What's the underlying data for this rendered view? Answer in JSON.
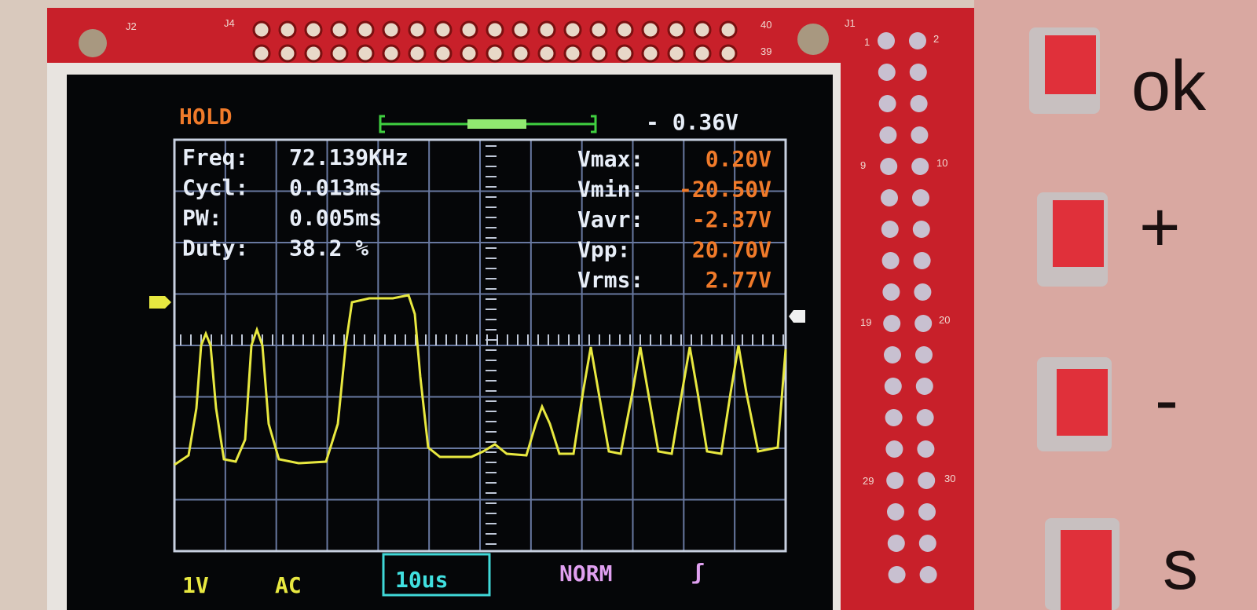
{
  "header": {
    "mode": "HOLD",
    "trigger_level": "- 0.36V"
  },
  "left_measurements": [
    {
      "label": "Freq:",
      "value": "72.139KHz"
    },
    {
      "label": "Cycl:",
      "value": "0.013ms"
    },
    {
      "label": "PW:",
      "value": "0.005ms"
    },
    {
      "label": "Duty:",
      "value": "38.2 %"
    }
  ],
  "right_measurements": [
    {
      "label": "Vmax:",
      "value": "0.20V"
    },
    {
      "label": "Vmin:",
      "value": "-20.50V"
    },
    {
      "label": "Vavr:",
      "value": "-2.37V"
    },
    {
      "label": "Vpp:",
      "value": "20.70V"
    },
    {
      "label": "Vrms:",
      "value": "2.77V"
    }
  ],
  "footer": {
    "volts_per_div": "1V",
    "coupling": "AC",
    "time_per_div": "10us",
    "trigger_mode": "NORM",
    "trigger_edge": "ʃ"
  },
  "board_labels": {
    "j2": "J2",
    "j4": "J4",
    "j1": "J1",
    "pin1": "1",
    "pin2": "2",
    "pin9": "9",
    "pin10": "10",
    "pin19": "19",
    "pin20": "20",
    "pin29": "29",
    "pin30": "30",
    "pin39": "39",
    "pin40": "40"
  },
  "handwriting": [
    "ok",
    "+",
    "-",
    "s"
  ]
}
